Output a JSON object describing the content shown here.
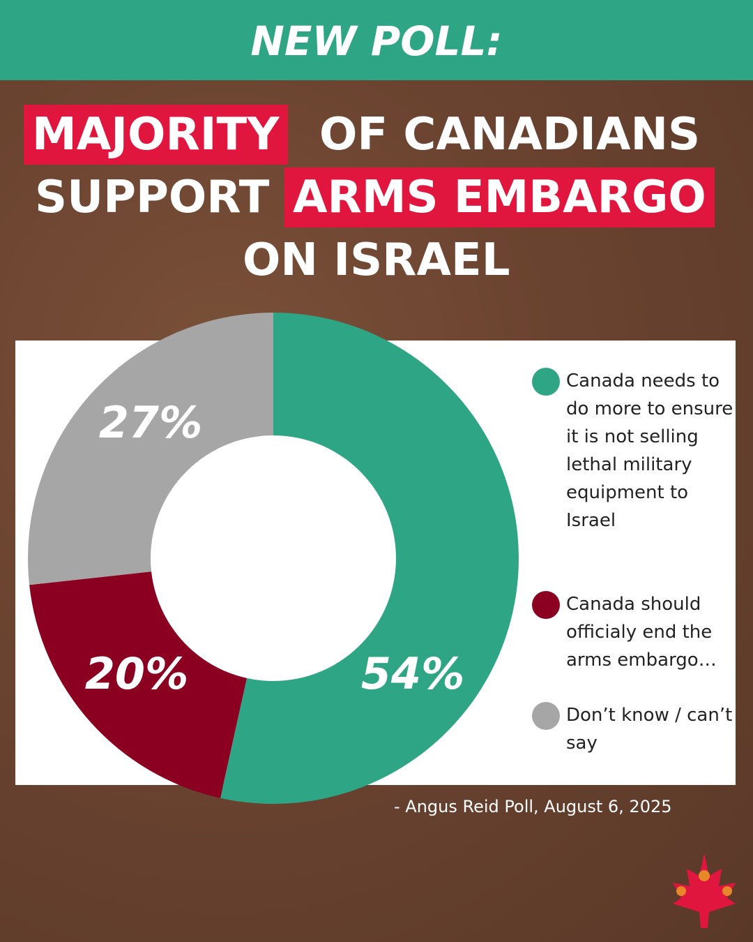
{
  "banner": "NEW POLL:",
  "headline": [
    "MAJORITY",
    "OF CANADIANS",
    "SUPPORT",
    "ARMS EMBARGO",
    "ON ISRAEL"
  ],
  "chart_data": {
    "type": "donut",
    "categories": [
      "Canada needs to do more to ensure it is not selling lethal military equipment to Israel",
      "Canada should officialy end the arms embargo…",
      "Don’t know / can’t say"
    ],
    "values": [
      54,
      20,
      27
    ],
    "value_labels": [
      "54%",
      "20%",
      "27%"
    ],
    "colors": [
      "#2ea686",
      "#8b0020",
      "#a6a6a6"
    ],
    "source": "- Angus Reid Poll, August 6, 2025"
  }
}
